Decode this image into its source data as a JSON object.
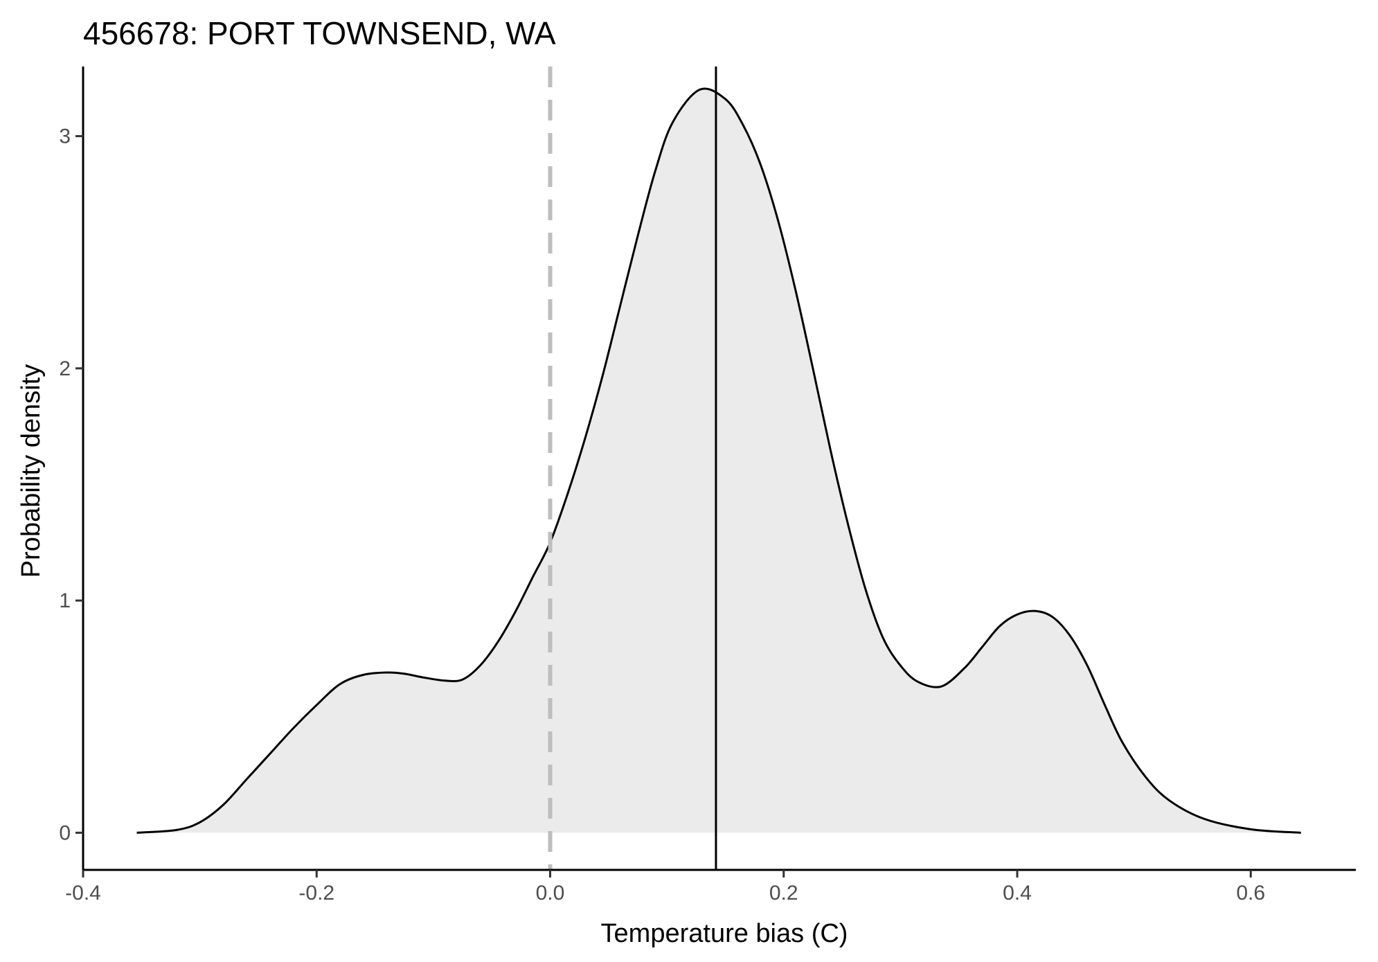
{
  "chart_data": {
    "type": "area",
    "title": "456678: PORT TOWNSEND, WA",
    "xlabel": "Temperature bias (C)",
    "ylabel": "Probability density",
    "xlim": [
      -0.4,
      0.69
    ],
    "ylim": [
      -0.16,
      3.3
    ],
    "x_ticks": [
      -0.4,
      -0.2,
      0.0,
      0.2,
      0.4,
      0.6
    ],
    "x_tick_labels": [
      "-0.4",
      "-0.2",
      "0.0",
      "0.2",
      "0.4",
      "0.6"
    ],
    "y_ticks": [
      0,
      1,
      2,
      3
    ],
    "y_tick_labels": [
      "0",
      "1",
      "2",
      "3"
    ],
    "grid": false,
    "legend": "none",
    "reference_lines": [
      {
        "x": 0.0,
        "style": "dashed",
        "color": "#bebebe"
      },
      {
        "x": 0.142,
        "style": "solid",
        "color": "#000000"
      }
    ],
    "series": [
      {
        "fill": "#ebebeb",
        "stroke": "#000000",
        "x": [
          -0.354,
          -0.32,
          -0.3,
          -0.28,
          -0.26,
          -0.24,
          -0.22,
          -0.2,
          -0.18,
          -0.16,
          -0.14,
          -0.125,
          -0.11,
          -0.09,
          -0.075,
          -0.06,
          -0.045,
          -0.03,
          -0.015,
          0.0,
          0.015,
          0.03,
          0.045,
          0.06,
          0.075,
          0.09,
          0.105,
          0.128,
          0.15,
          0.165,
          0.18,
          0.195,
          0.21,
          0.225,
          0.24,
          0.255,
          0.27,
          0.285,
          0.3,
          0.315,
          0.335,
          0.355,
          0.37,
          0.385,
          0.4,
          0.415,
          0.43,
          0.445,
          0.46,
          0.475,
          0.49,
          0.51,
          0.53,
          0.56,
          0.6,
          0.643
        ],
        "y": [
          0.0,
          0.012,
          0.045,
          0.12,
          0.23,
          0.34,
          0.45,
          0.55,
          0.64,
          0.68,
          0.69,
          0.685,
          0.67,
          0.655,
          0.66,
          0.72,
          0.82,
          0.95,
          1.1,
          1.25,
          1.46,
          1.7,
          1.97,
          2.27,
          2.57,
          2.85,
          3.06,
          3.2,
          3.16,
          3.05,
          2.88,
          2.64,
          2.34,
          2.0,
          1.65,
          1.33,
          1.05,
          0.84,
          0.72,
          0.65,
          0.63,
          0.71,
          0.8,
          0.89,
          0.94,
          0.955,
          0.93,
          0.85,
          0.72,
          0.55,
          0.39,
          0.24,
          0.14,
          0.06,
          0.015,
          0.0
        ]
      }
    ]
  }
}
